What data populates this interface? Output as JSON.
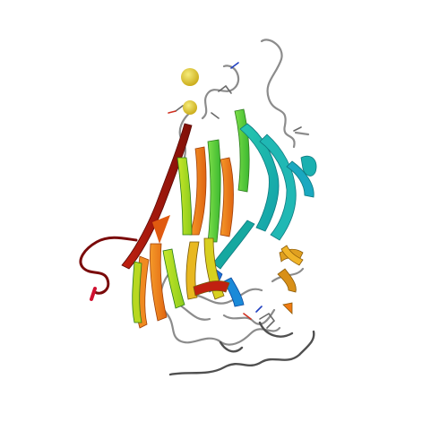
{
  "image": {
    "subject": "protein-ribbon-cartoon",
    "background": "#ffffff",
    "colors": {
      "blue": "#1f6fd8",
      "cyan": "#1ab6c4",
      "teal": "#19b59a",
      "green": "#3cc33c",
      "lime": "#a6e01e",
      "yellow": "#e6d21a",
      "orange": "#f07a12",
      "dark_orange": "#d4500c",
      "red": "#b01010",
      "dark_red": "#7a0a0a",
      "loop_gray": "#8c8c8c",
      "loop_dark": "#505050",
      "ligand_yellow": "#e0c81e"
    }
  }
}
